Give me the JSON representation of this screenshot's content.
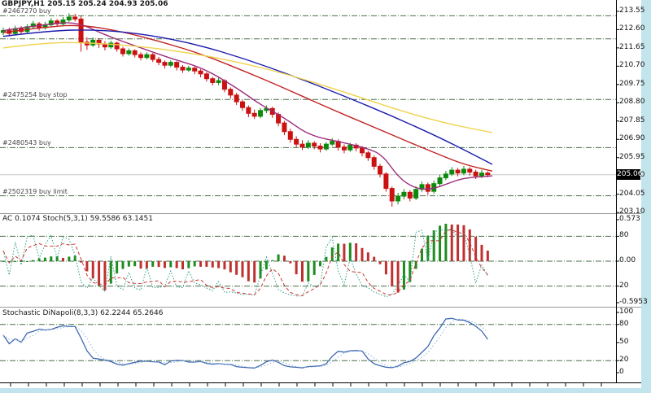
{
  "window": {
    "workspace_color": "#c2e4ec",
    "background": "#ffffff"
  },
  "main_chart": {
    "title": "GBPJPY,H1 205.15 205.24 204.93 205.06",
    "price_axis": {
      "ticks": [
        "213.55",
        "212.60",
        "211.65",
        "210.70",
        "209.75",
        "208.80",
        "207.85",
        "206.90",
        "205.95",
        "205.00",
        "204.05",
        "203.10"
      ],
      "current_price": "205.06"
    },
    "order_lines": [
      {
        "label": "#2467270 buy",
        "price": 213.32
      },
      {
        "label": "",
        "price": 212.12
      },
      {
        "label": "#2475254 buy stop",
        "price": 208.97
      },
      {
        "label": "#2480543 buy",
        "price": 206.47
      },
      {
        "label": "#2502319 buy limit",
        "price": 203.97
      }
    ],
    "time_axis": {
      "labels_visible": false
    }
  },
  "indicator1": {
    "title": "AC 0.1074 Stoch(5,3,1) 59.5586 63.1451",
    "axis_labels": {
      "top": "0.573",
      "upper": "80",
      "mid": "0.00",
      "lower": "20",
      "bottom": "-0.5953"
    },
    "levels": [
      80,
      20
    ]
  },
  "indicator2": {
    "title": "Stochastic DiNapoli(8,3,3) 62.2244 65.2646",
    "axis_labels": [
      "100",
      "80",
      "50",
      "20",
      "0"
    ],
    "levels": [
      80,
      20
    ]
  },
  "chart_data": {
    "type": "candlestick",
    "symbol": "GBPJPY",
    "timeframe": "H1",
    "last_ohlc": [
      205.15,
      205.24,
      204.93,
      205.06
    ],
    "price_range": [
      203.15,
      213.8
    ],
    "grid": "off",
    "candles": [
      [
        212.45,
        212.7,
        212.3,
        212.55
      ],
      [
        212.55,
        212.7,
        212.25,
        212.4
      ],
      [
        212.4,
        212.8,
        212.3,
        212.65
      ],
      [
        212.65,
        212.78,
        212.38,
        212.5
      ],
      [
        212.5,
        212.88,
        212.42,
        212.75
      ],
      [
        212.75,
        213.05,
        212.65,
        212.9
      ],
      [
        212.9,
        213.0,
        212.55,
        212.7
      ],
      [
        212.7,
        213.0,
        212.6,
        212.85
      ],
      [
        212.85,
        213.2,
        212.75,
        213.05
      ],
      [
        213.05,
        213.15,
        212.75,
        212.9
      ],
      [
        212.9,
        213.25,
        212.8,
        213.1
      ],
      [
        213.1,
        213.45,
        213.0,
        213.25
      ],
      [
        213.25,
        213.42,
        213.02,
        213.15
      ],
      [
        213.15,
        213.3,
        211.45,
        211.95
      ],
      [
        211.95,
        212.2,
        211.55,
        211.8
      ],
      [
        211.8,
        212.2,
        211.7,
        212.05
      ],
      [
        212.05,
        212.15,
        211.65,
        211.85
      ],
      [
        211.85,
        212.0,
        211.52,
        211.7
      ],
      [
        211.7,
        212.02,
        211.6,
        211.9
      ],
      [
        211.9,
        211.98,
        211.45,
        211.6
      ],
      [
        211.6,
        211.7,
        211.2,
        211.35
      ],
      [
        211.35,
        211.62,
        211.25,
        211.5
      ],
      [
        211.5,
        211.58,
        211.15,
        211.3
      ],
      [
        211.3,
        211.42,
        211.0,
        211.15
      ],
      [
        211.15,
        211.42,
        211.05,
        211.3
      ],
      [
        211.3,
        211.38,
        210.92,
        211.05
      ],
      [
        211.05,
        211.18,
        210.75,
        210.9
      ],
      [
        210.9,
        211.0,
        210.58,
        210.75
      ],
      [
        210.75,
        211.0,
        210.65,
        210.9
      ],
      [
        210.9,
        210.96,
        210.48,
        210.65
      ],
      [
        210.65,
        210.75,
        210.35,
        210.5
      ],
      [
        210.5,
        210.72,
        210.4,
        210.6
      ],
      [
        210.6,
        210.68,
        210.28,
        210.45
      ],
      [
        210.45,
        210.55,
        210.12,
        210.3
      ],
      [
        210.3,
        210.4,
        209.9,
        210.05
      ],
      [
        210.05,
        210.15,
        209.7,
        209.85
      ],
      [
        209.85,
        210.1,
        209.72,
        209.95
      ],
      [
        209.95,
        210.02,
        209.35,
        209.5
      ],
      [
        209.5,
        209.6,
        209.02,
        209.2
      ],
      [
        209.2,
        209.32,
        208.68,
        208.85
      ],
      [
        208.85,
        208.95,
        208.38,
        208.55
      ],
      [
        208.55,
        208.66,
        208.05,
        208.25
      ],
      [
        208.25,
        208.45,
        207.95,
        208.1
      ],
      [
        208.1,
        208.52,
        208.0,
        208.4
      ],
      [
        208.4,
        208.66,
        208.26,
        208.5
      ],
      [
        208.5,
        208.6,
        208.02,
        208.2
      ],
      [
        208.2,
        208.3,
        207.58,
        207.75
      ],
      [
        207.75,
        207.86,
        207.12,
        207.3
      ],
      [
        207.3,
        207.45,
        206.72,
        206.9
      ],
      [
        206.9,
        207.06,
        206.48,
        206.65
      ],
      [
        206.65,
        206.86,
        206.34,
        206.5
      ],
      [
        206.5,
        206.86,
        206.4,
        206.7
      ],
      [
        206.7,
        206.8,
        206.38,
        206.55
      ],
      [
        206.55,
        206.7,
        206.22,
        206.4
      ],
      [
        206.4,
        206.76,
        206.3,
        206.65
      ],
      [
        206.65,
        206.96,
        206.55,
        206.8
      ],
      [
        206.8,
        206.9,
        206.32,
        206.5
      ],
      [
        206.5,
        206.64,
        206.18,
        206.35
      ],
      [
        206.35,
        206.72,
        206.25,
        206.6
      ],
      [
        206.6,
        206.7,
        206.28,
        206.45
      ],
      [
        206.45,
        206.55,
        206.02,
        206.2
      ],
      [
        206.2,
        206.3,
        205.78,
        205.95
      ],
      [
        205.95,
        206.06,
        205.32,
        205.5
      ],
      [
        205.5,
        205.62,
        204.92,
        205.1
      ],
      [
        205.1,
        205.2,
        204.18,
        204.35
      ],
      [
        204.35,
        204.46,
        203.4,
        203.7
      ],
      [
        203.7,
        204.12,
        203.52,
        203.95
      ],
      [
        203.95,
        204.32,
        203.78,
        204.15
      ],
      [
        204.15,
        204.26,
        203.68,
        203.85
      ],
      [
        203.85,
        204.46,
        203.74,
        204.3
      ],
      [
        204.3,
        204.7,
        204.18,
        204.55
      ],
      [
        204.55,
        204.66,
        204.02,
        204.2
      ],
      [
        204.2,
        204.76,
        204.08,
        204.6
      ],
      [
        204.6,
        205.06,
        204.48,
        204.9
      ],
      [
        204.9,
        205.26,
        204.78,
        205.1
      ],
      [
        205.1,
        205.46,
        205.0,
        205.3
      ],
      [
        205.3,
        205.42,
        204.98,
        205.15
      ],
      [
        205.15,
        205.52,
        205.04,
        205.35
      ],
      [
        205.35,
        205.46,
        205.02,
        205.2
      ],
      [
        205.2,
        205.32,
        204.84,
        205.0
      ],
      [
        205.0,
        205.32,
        204.88,
        205.15
      ],
      [
        205.15,
        205.24,
        204.93,
        205.06
      ]
    ],
    "moving_averages": [
      {
        "name": "ma-fast-magenta",
        "color": "#9c2d7e",
        "points": [
          [
            4,
            212.55
          ],
          [
            60,
            212.9
          ],
          [
            95,
            213.0
          ],
          [
            130,
            212.3
          ],
          [
            170,
            211.7
          ],
          [
            210,
            211.1
          ],
          [
            250,
            210.6
          ],
          [
            290,
            209.6
          ],
          [
            320,
            208.7
          ],
          [
            350,
            208.0
          ],
          [
            380,
            207.1
          ],
          [
            420,
            206.75
          ],
          [
            450,
            206.45
          ],
          [
            470,
            206.1
          ],
          [
            490,
            204.9
          ],
          [
            510,
            204.35
          ],
          [
            530,
            204.3
          ],
          [
            550,
            204.6
          ],
          [
            570,
            204.9
          ],
          [
            605,
            205.0
          ]
        ]
      },
      {
        "name": "ma-medium-red",
        "color": "#c32222",
        "points": [
          [
            4,
            212.45
          ],
          [
            60,
            212.75
          ],
          [
            100,
            212.85
          ],
          [
            150,
            212.5
          ],
          [
            200,
            211.95
          ],
          [
            250,
            211.3
          ],
          [
            300,
            210.45
          ],
          [
            350,
            209.55
          ],
          [
            400,
            208.6
          ],
          [
            450,
            207.7
          ],
          [
            500,
            206.8
          ],
          [
            540,
            206.1
          ],
          [
            570,
            205.6
          ],
          [
            605,
            205.25
          ]
        ]
      },
      {
        "name": "ma-slow-blue",
        "color": "#1c1cae",
        "points": [
          [
            4,
            212.25
          ],
          [
            60,
            212.55
          ],
          [
            120,
            212.6
          ],
          [
            180,
            212.35
          ],
          [
            240,
            211.85
          ],
          [
            300,
            211.1
          ],
          [
            360,
            210.2
          ],
          [
            420,
            209.2
          ],
          [
            480,
            208.15
          ],
          [
            540,
            207.0
          ],
          [
            575,
            206.25
          ],
          [
            605,
            205.6
          ]
        ]
      },
      {
        "name": "ma-slowest-yellow",
        "color": "#efd24a",
        "points": [
          [
            4,
            211.65
          ],
          [
            60,
            211.95
          ],
          [
            120,
            211.9
          ],
          [
            180,
            211.7
          ],
          [
            240,
            211.35
          ],
          [
            300,
            210.85
          ],
          [
            360,
            210.2
          ],
          [
            420,
            209.4
          ],
          [
            480,
            208.55
          ],
          [
            540,
            207.8
          ],
          [
            605,
            207.25
          ]
        ]
      }
    ],
    "colors": {
      "bull": "#0c8a0c",
      "bear": "#cc1111",
      "order_line": "#4a6f4a",
      "current_price_line": "#c6c6c6",
      "price_box_bg": "#000000",
      "price_box_text": "#ffffff",
      "ac_up": "#1e8c1e",
      "ac_down": "#c03030",
      "stoch_k": "#2e9e86",
      "stoch_d": "#cc3333",
      "dinapoli_main": "#3e68b0",
      "dinapoli_signal": "#8fb4dc",
      "frame": "#000000",
      "separator": "#999999"
    }
  }
}
